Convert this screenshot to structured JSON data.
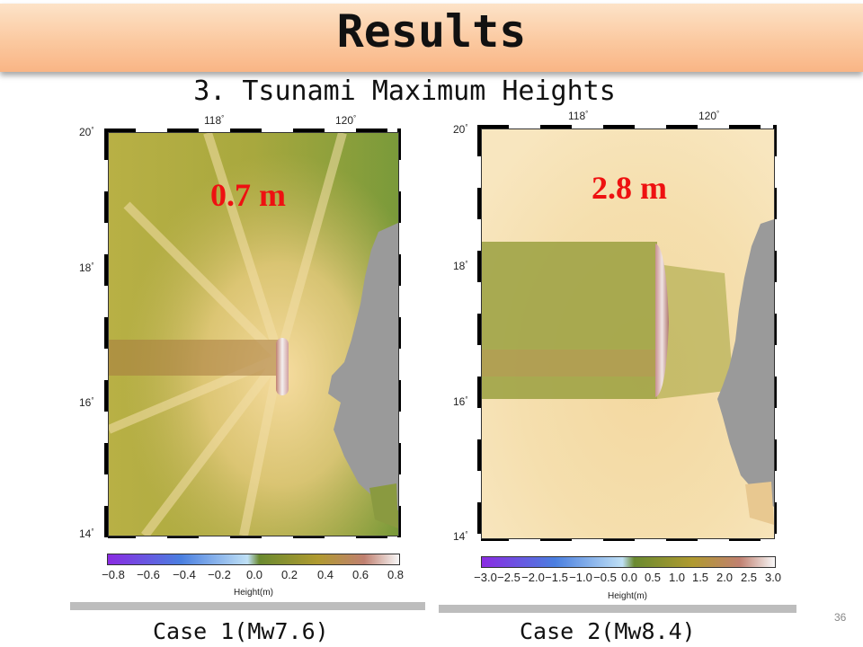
{
  "header": {
    "title": "Results"
  },
  "subtitle": "3. Tsunami Maximum Heights",
  "panels": [
    {
      "id": "case1",
      "annotation": "0.7 m",
      "lon_ticks": [
        "118",
        "120"
      ],
      "lat_ticks": [
        "20",
        "18",
        "16",
        "14"
      ],
      "colorbar": {
        "ticks": [
          "−0.8",
          "−0.6",
          "−0.4",
          "−0.2",
          "0.0",
          "0.2",
          "0.4",
          "0.6",
          "0.8"
        ],
        "label": "Height(m)"
      },
      "caption": "Case 1(Mw7.6)"
    },
    {
      "id": "case2",
      "annotation": "2.8 m",
      "lon_ticks": [
        "118",
        "120"
      ],
      "lat_ticks": [
        "20",
        "18",
        "16",
        "14"
      ],
      "colorbar": {
        "ticks": [
          "−3.0",
          "−2.5",
          "−2.0",
          "−1.5",
          "−1.0",
          "−0.5",
          "0.0",
          "0.5",
          "1.0",
          "1.5",
          "2.0",
          "2.5",
          "3.0"
        ],
        "label": "Height(m)"
      },
      "caption": "Case 2(Mw8.4)"
    }
  ],
  "colors": {
    "annotation": "#ee1111",
    "land": "#9a9a9a",
    "title_bar": "#fbc9a0"
  },
  "page_number": "36"
}
